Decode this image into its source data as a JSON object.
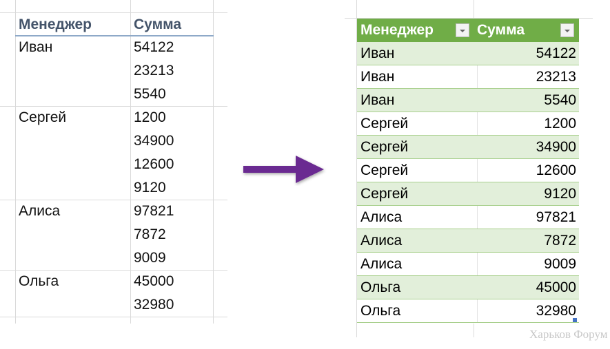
{
  "left_table": {
    "headers": [
      "Менеджер",
      "Сумма"
    ],
    "groups": [
      {
        "manager": "Иван",
        "values": [
          "54122",
          "23213",
          "5540"
        ]
      },
      {
        "manager": "Сергей",
        "values": [
          "1200",
          "34900",
          "12600",
          "9120"
        ]
      },
      {
        "manager": "Алиса",
        "values": [
          "97821",
          "7872",
          "9009"
        ]
      },
      {
        "manager": "Ольга",
        "values": [
          "45000",
          "32980"
        ]
      }
    ]
  },
  "right_table": {
    "headers": [
      "Менеджер",
      "Сумма"
    ],
    "header_color": "#70ad47",
    "band_color": "#e2efda",
    "rows": [
      [
        "Иван",
        "54122"
      ],
      [
        "Иван",
        "23213"
      ],
      [
        "Иван",
        "5540"
      ],
      [
        "Сергей",
        "1200"
      ],
      [
        "Сергей",
        "34900"
      ],
      [
        "Сергей",
        "12600"
      ],
      [
        "Сергей",
        "9120"
      ],
      [
        "Алиса",
        "97821"
      ],
      [
        "Алиса",
        "7872"
      ],
      [
        "Алиса",
        "9009"
      ],
      [
        "Ольга",
        "45000"
      ],
      [
        "Ольга",
        "32980"
      ]
    ]
  },
  "arrow": {
    "icon": "arrow-right-icon",
    "color": "#6b2c91"
  },
  "watermark": "Харьков Форум"
}
